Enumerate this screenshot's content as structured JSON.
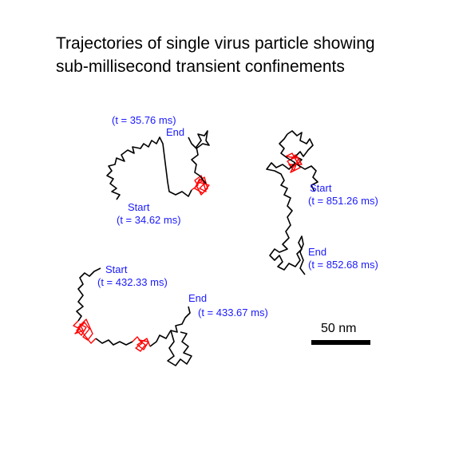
{
  "title": {
    "line1": "Trajectories of single virus particle showing",
    "line2": "sub-millisecond transient confinements"
  },
  "colors": {
    "path": "#000000",
    "confinement": "#ff0000",
    "label": "#1a1aff"
  },
  "trajectories": [
    {
      "id": "traj-1",
      "start_label": "Start",
      "start_time": "(t = 34.62 ms)",
      "end_label": "End",
      "end_time": "(t = 35.76 ms)"
    },
    {
      "id": "traj-2",
      "start_label": "Start",
      "start_time": "(t = 851.26 ms)",
      "end_label": "End",
      "end_time": "(t = 852.68 ms)"
    },
    {
      "id": "traj-3",
      "start_label": "Start",
      "start_time": "(t = 432.33 ms)",
      "end_label": "End",
      "end_time": "(t = 433.67 ms)"
    }
  ],
  "scale_bar": {
    "label": "50 nm"
  }
}
